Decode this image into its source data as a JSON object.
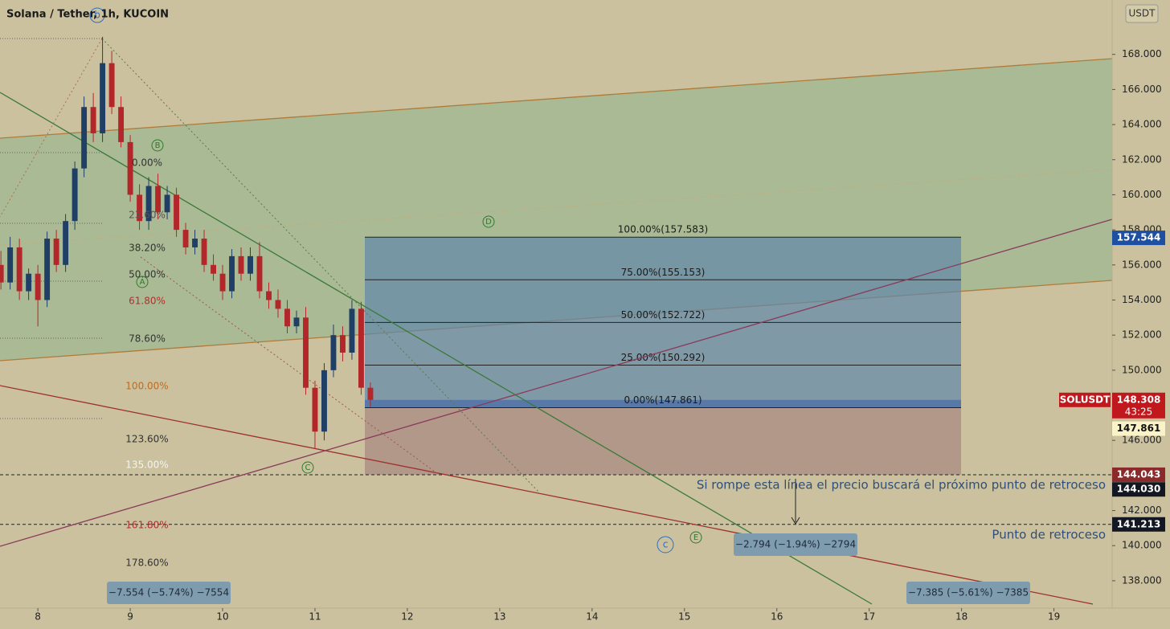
{
  "title": "Solana / Tether, 1h, KUCOIN",
  "currency": "USDT",
  "chart_data": {
    "type": "candlestick",
    "x": [
      7.6,
      7.7,
      7.8,
      7.9,
      8.0,
      8.1,
      8.2,
      8.3,
      8.4,
      8.5,
      8.6,
      8.7,
      8.8,
      8.9,
      9.0,
      9.1,
      9.2,
      9.3,
      9.4,
      9.5,
      9.6,
      9.7,
      9.8,
      9.9,
      10.0,
      10.1,
      10.2,
      10.3,
      10.4,
      10.5,
      10.6,
      10.7,
      10.8,
      10.9,
      11.0,
      11.1,
      11.2,
      11.3,
      11.4,
      11.5,
      11.6
    ],
    "open": [
      156,
      155,
      157,
      154.5,
      155.5,
      154,
      157.5,
      156,
      158.5,
      161.5,
      165,
      163.5,
      167.5,
      165,
      163,
      160,
      158.5,
      160.5,
      159,
      160,
      158,
      157,
      157.5,
      156,
      155.5,
      154.5,
      156.5,
      155.5,
      156.5,
      154.5,
      154,
      153.5,
      152.5,
      153,
      149,
      146.5,
      150,
      152,
      151,
      153.5,
      149
    ],
    "high": [
      156.8,
      157.6,
      157.5,
      155.8,
      156,
      157.9,
      158,
      158.9,
      161.9,
      165.6,
      165.8,
      169,
      168.2,
      165.6,
      163.4,
      160.6,
      161,
      161.2,
      160.5,
      160.4,
      158.4,
      158,
      158,
      156.6,
      156,
      156.9,
      157,
      157,
      157.3,
      155,
      154.6,
      154,
      153.4,
      153.6,
      149.4,
      150.4,
      152.6,
      152.5,
      154,
      153.9,
      149.3
    ],
    "low": [
      154.6,
      154.6,
      154,
      154,
      152.5,
      153.6,
      155.6,
      155.6,
      158,
      161,
      163,
      163,
      164.6,
      162.7,
      159.6,
      158,
      158,
      158.6,
      158.6,
      157.6,
      156.6,
      156.6,
      155.6,
      155.1,
      154,
      154.1,
      155.1,
      155.1,
      154.1,
      153.5,
      153,
      152.1,
      152.1,
      148.6,
      145.5,
      146,
      149.6,
      150.5,
      150.6,
      148.6,
      147.9
    ],
    "close": [
      155,
      157,
      154.5,
      155.5,
      154,
      157.5,
      156,
      158.5,
      161.5,
      165,
      163.5,
      167.5,
      165,
      163,
      160,
      158.5,
      160.5,
      159,
      160,
      158,
      157,
      157.5,
      156,
      155.5,
      154.5,
      156.5,
      155.5,
      156.5,
      154.5,
      154,
      153.5,
      152.5,
      153,
      149,
      146.5,
      150,
      152,
      151,
      153.5,
      149,
      148.308
    ],
    "xlim": [
      7.59,
      19.63
    ],
    "ylim": [
      136.44,
      171.1
    ],
    "xticks": [
      8,
      9,
      10,
      11,
      12,
      13,
      14,
      15,
      16,
      17,
      18,
      19
    ],
    "yticks": [
      {
        "value": 138,
        "label": "138.000"
      },
      {
        "value": 140,
        "label": "140.000"
      },
      {
        "value": 142,
        "label": "142.000"
      },
      {
        "value": 144,
        "label": "144.000"
      },
      {
        "value": 146,
        "label": "146.000"
      },
      {
        "value": 148,
        "label": "148.000"
      },
      {
        "value": 150,
        "label": "150.000"
      },
      {
        "value": 152,
        "label": "152.000"
      },
      {
        "value": 154,
        "label": "154.000"
      },
      {
        "value": 156,
        "label": "156.000"
      },
      {
        "value": 158,
        "label": "158.000"
      },
      {
        "value": 160,
        "label": "160.000"
      },
      {
        "value": 162,
        "label": "162.000"
      },
      {
        "value": 164,
        "label": "164.000"
      },
      {
        "value": 166,
        "label": "166.000"
      },
      {
        "value": 168,
        "label": "168.000"
      }
    ],
    "position_levels": [
      {
        "value": 157.583,
        "label": "100.00%(157.583)"
      },
      {
        "value": 155.153,
        "label": "75.00%(155.153)"
      },
      {
        "value": 152.722,
        "label": "50.00%(152.722)"
      },
      {
        "value": 150.292,
        "label": "25.00%(150.292)"
      },
      {
        "value": 147.861,
        "label": "0.00%(147.861)"
      }
    ],
    "price_tags": [
      {
        "value": 157.544,
        "label": "157.544"
      },
      {
        "value": 148.308,
        "label": "148.308"
      },
      {
        "value": 147.861,
        "label": "147.861"
      },
      {
        "value": 144.043,
        "label": "144.043"
      },
      {
        "value": 144.03,
        "label": "144.030"
      },
      {
        "value": 141.213,
        "label": "141.213"
      }
    ],
    "symbol": "SOLUSDT",
    "countdown": "43:25"
  },
  "fib_labels": [
    "0.00%",
    "23.60%",
    "38.20%",
    "50.00%",
    "61.80%",
    "78.60%",
    "100.00%",
    "123.60%",
    "135.00%",
    "161.80%",
    "178.60%"
  ],
  "waves": [
    "b",
    "B",
    "A",
    "C",
    "D",
    "E",
    "c"
  ],
  "notes": [
    "Si rompe esta línea el precio buscará el próximo punto de retroceso",
    "Punto de retroceso"
  ],
  "measures": [
    "−7.554 (−5.74%) −7554",
    "−2.794 (−1.94%) −2794",
    "−7.385 (−5.61%) −7385"
  ]
}
